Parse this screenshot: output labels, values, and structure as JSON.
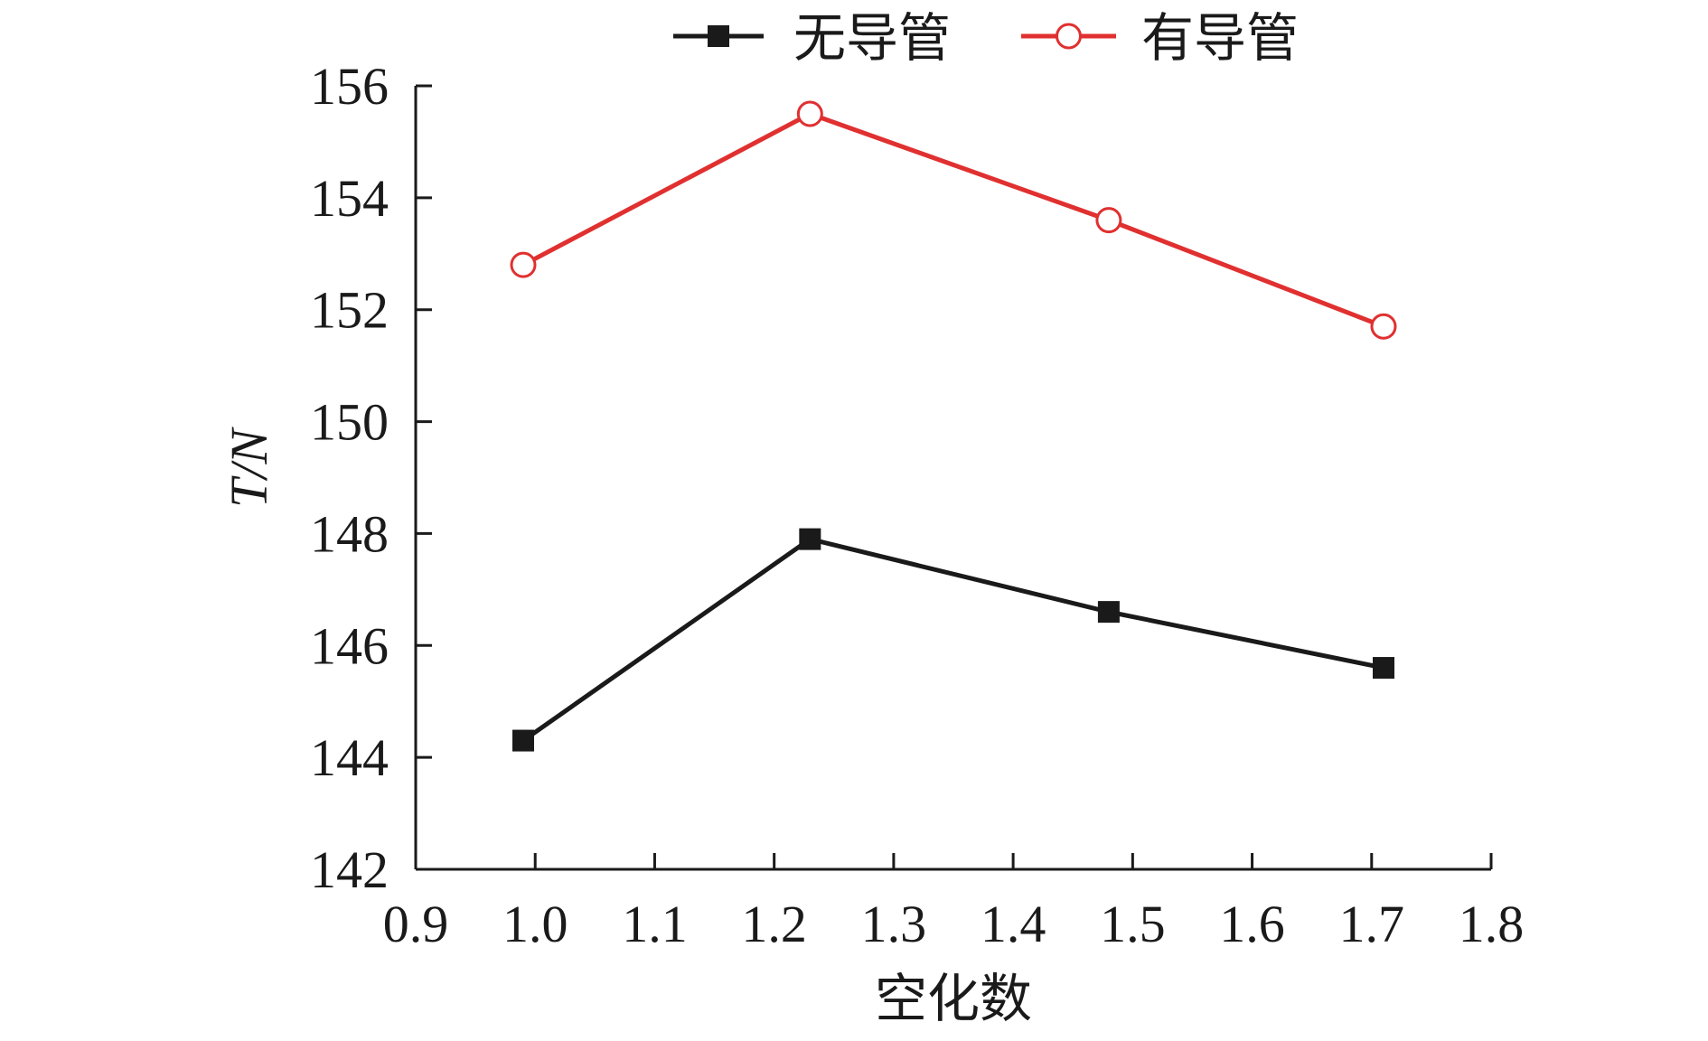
{
  "chart_data": {
    "type": "line",
    "xlabel": "空化数",
    "ylabel": "T/N",
    "xlim": [
      0.9,
      1.8
    ],
    "ylim": [
      142,
      156
    ],
    "x_ticks": [
      "0.9",
      "1.0",
      "1.1",
      "1.2",
      "1.3",
      "1.4",
      "1.5",
      "1.6",
      "1.7",
      "1.8"
    ],
    "y_ticks": [
      "142",
      "144",
      "146",
      "148",
      "150",
      "152",
      "154",
      "156"
    ],
    "grid": false,
    "legend_position": "top-center",
    "series": [
      {
        "name": "无导管",
        "color": "#1a1a1a",
        "marker": "filled-square",
        "x": [
          0.99,
          1.23,
          1.48,
          1.71
        ],
        "values": [
          144.3,
          147.9,
          146.6,
          145.6
        ]
      },
      {
        "name": "有导管",
        "color": "#e03030",
        "marker": "hollow-circle",
        "x": [
          0.99,
          1.23,
          1.48,
          1.71
        ],
        "values": [
          152.8,
          155.5,
          153.6,
          151.7
        ]
      }
    ]
  }
}
